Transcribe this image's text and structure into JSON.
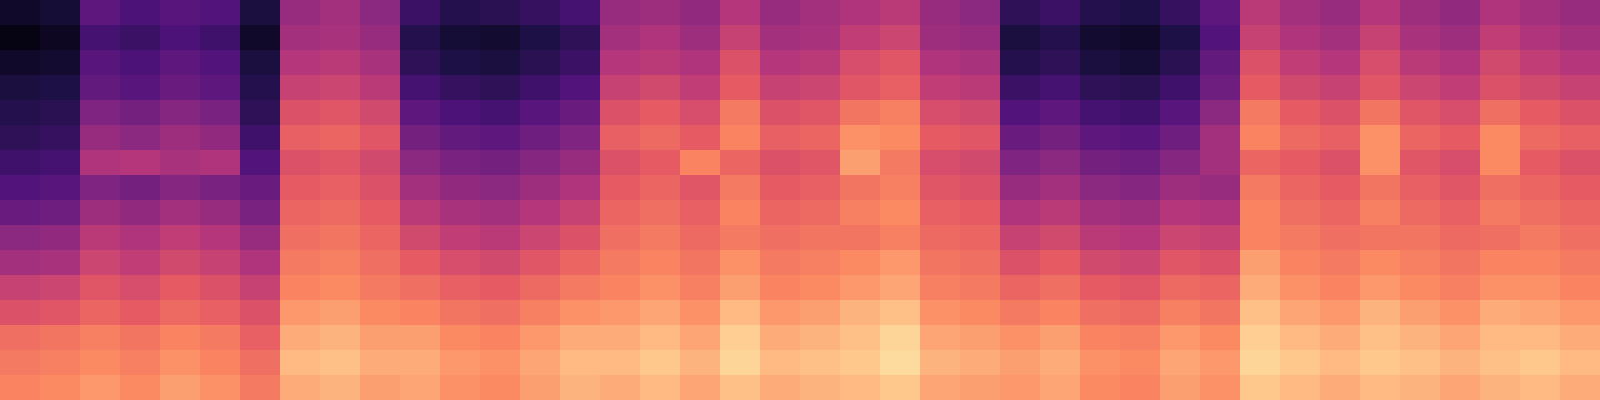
{
  "chart_data": {
    "type": "heatmap",
    "color": "magma",
    "tick_labels": false,
    "color_range": [
      -80,
      -10
    ],
    "cells": [
      [
        -75,
        -73,
        -60,
        -63,
        -61,
        -62,
        -72,
        -50,
        -48,
        -52,
        -66,
        -70,
        -69,
        -67,
        -64,
        -50,
        -49,
        -51,
        -45,
        -50,
        -48,
        -46,
        -44,
        -50,
        -52,
        -68,
        -66,
        -70,
        -71,
        -67,
        -60,
        -44,
        -48,
        -50,
        -45,
        -49,
        -51,
        -46,
        -48,
        -50
      ],
      [
        -78,
        -76,
        -64,
        -66,
        -63,
        -65,
        -75,
        -48,
        -47,
        -50,
        -70,
        -73,
        -74,
        -71,
        -68,
        -48,
        -46,
        -49,
        -42,
        -48,
        -47,
        -43,
        -41,
        -49,
        -50,
        -72,
        -70,
        -74,
        -75,
        -71,
        -62,
        -42,
        -46,
        -48,
        -42,
        -47,
        -49,
        -43,
        -46,
        -48
      ],
      [
        -75,
        -74,
        -61,
        -63,
        -60,
        -62,
        -72,
        -45,
        -44,
        -47,
        -68,
        -71,
        -72,
        -69,
        -66,
        -45,
        -44,
        -46,
        -38,
        -45,
        -44,
        -39,
        -37,
        -46,
        -47,
        -70,
        -68,
        -72,
        -73,
        -69,
        -59,
        -38,
        -43,
        -45,
        -39,
        -44,
        -46,
        -40,
        -43,
        -45
      ],
      [
        -72,
        -71,
        -59,
        -61,
        -58,
        -60,
        -70,
        -42,
        -41,
        -44,
        -64,
        -67,
        -68,
        -65,
        -62,
        -42,
        -40,
        -43,
        -36,
        -42,
        -41,
        -37,
        -35,
        -43,
        -44,
        -66,
        -64,
        -68,
        -69,
        -65,
        -57,
        -36,
        -40,
        -42,
        -37,
        -41,
        -43,
        -38,
        -40,
        -42
      ],
      [
        -70,
        -69,
        -54,
        -56,
        -53,
        -55,
        -68,
        -38,
        -37,
        -40,
        -60,
        -63,
        -64,
        -61,
        -58,
        -38,
        -36,
        -39,
        -30,
        -38,
        -37,
        -31,
        -29,
        -39,
        -40,
        -62,
        -60,
        -64,
        -65,
        -61,
        -52,
        -30,
        -36,
        -38,
        -31,
        -37,
        -39,
        -32,
        -36,
        -38
      ],
      [
        -68,
        -67,
        -50,
        -52,
        -49,
        -51,
        -65,
        -35,
        -34,
        -37,
        -56,
        -59,
        -60,
        -57,
        -54,
        -35,
        -33,
        -36,
        -28,
        -35,
        -34,
        -26,
        -27,
        -36,
        -37,
        -58,
        -56,
        -60,
        -61,
        -57,
        -48,
        -28,
        -33,
        -35,
        -26,
        -34,
        -36,
        -27,
        -33,
        -35
      ],
      [
        -65,
        -64,
        -46,
        -45,
        -47,
        -46,
        -62,
        -38,
        -37,
        -40,
        -52,
        -55,
        -56,
        -53,
        -50,
        -38,
        -36,
        -28,
        -34,
        -38,
        -37,
        -24,
        -30,
        -39,
        -40,
        -54,
        -52,
        -56,
        -57,
        -53,
        -48,
        -34,
        -36,
        -38,
        -26,
        -37,
        -39,
        -27,
        -36,
        -38
      ],
      [
        -62,
        -61,
        -54,
        -56,
        -53,
        -55,
        -58,
        -36,
        -35,
        -38,
        -48,
        -51,
        -52,
        -49,
        -46,
        -36,
        -34,
        -37,
        -30,
        -36,
        -35,
        -31,
        -29,
        -37,
        -38,
        -50,
        -48,
        -52,
        -53,
        -49,
        -50,
        -30,
        -34,
        -36,
        -31,
        -35,
        -37,
        -32,
        -34,
        -36
      ],
      [
        -58,
        -57,
        -49,
        -51,
        -48,
        -50,
        -55,
        -34,
        -33,
        -36,
        -44,
        -47,
        -48,
        -45,
        -42,
        -34,
        -32,
        -35,
        -28,
        -34,
        -33,
        -29,
        -27,
        -35,
        -36,
        -46,
        -44,
        -48,
        -49,
        -45,
        -46,
        -28,
        -32,
        -34,
        -29,
        -33,
        -35,
        -30,
        -32,
        -34
      ],
      [
        -52,
        -51,
        -44,
        -46,
        -43,
        -45,
        -50,
        -32,
        -31,
        -34,
        -40,
        -43,
        -44,
        -41,
        -38,
        -32,
        -30,
        -33,
        -30,
        -32,
        -31,
        -31,
        -29,
        -33,
        -34,
        -42,
        -40,
        -44,
        -45,
        -41,
        -42,
        -28,
        -30,
        -32,
        -31,
        -31,
        -33,
        -32,
        -30,
        -32
      ],
      [
        -48,
        -47,
        -41,
        -43,
        -40,
        -42,
        -46,
        -30,
        -29,
        -32,
        -36,
        -39,
        -40,
        -37,
        -34,
        -30,
        -28,
        -31,
        -26,
        -30,
        -29,
        -27,
        -25,
        -31,
        -32,
        -38,
        -36,
        -40,
        -41,
        -37,
        -38,
        -24,
        -28,
        -30,
        -27,
        -29,
        -31,
        -28,
        -28,
        -30
      ],
      [
        -42,
        -41,
        -37,
        -39,
        -36,
        -38,
        -42,
        -28,
        -27,
        -30,
        -32,
        -35,
        -36,
        -33,
        -30,
        -28,
        -26,
        -29,
        -24,
        -28,
        -27,
        -25,
        -23,
        -29,
        -30,
        -34,
        -32,
        -36,
        -37,
        -33,
        -34,
        -22,
        -26,
        -28,
        -25,
        -27,
        -29,
        -26,
        -26,
        -28
      ],
      [
        -38,
        -37,
        -34,
        -36,
        -33,
        -35,
        -38,
        -25,
        -24,
        -27,
        -28,
        -31,
        -32,
        -29,
        -26,
        -25,
        -23,
        -26,
        -20,
        -25,
        -24,
        -21,
        -19,
        -26,
        -27,
        -30,
        -28,
        -32,
        -33,
        -29,
        -31,
        -19,
        -23,
        -25,
        -21,
        -24,
        -26,
        -22,
        -23,
        -25
      ],
      [
        -32,
        -31,
        -29,
        -31,
        -28,
        -30,
        -35,
        -22,
        -21,
        -24,
        -24,
        -27,
        -28,
        -25,
        -22,
        -22,
        -20,
        -23,
        -17,
        -22,
        -21,
        -19,
        -16,
        -23,
        -24,
        -26,
        -24,
        -28,
        -29,
        -25,
        -27,
        -17,
        -20,
        -22,
        -19,
        -21,
        -23,
        -20,
        -20,
        -22
      ],
      [
        -30,
        -29,
        -27,
        -29,
        -26,
        -28,
        -32,
        -20,
        -19,
        -22,
        -22,
        -25,
        -26,
        -23,
        -20,
        -20,
        -18,
        -21,
        -16,
        -20,
        -19,
        -18,
        -15,
        -21,
        -22,
        -24,
        -22,
        -26,
        -27,
        -23,
        -25,
        -16,
        -18,
        -20,
        -18,
        -19,
        -21,
        -19,
        -18,
        -20
      ],
      [
        -28,
        -27,
        -25,
        -27,
        -24,
        -26,
        -30,
        -22,
        -21,
        -24,
        -23,
        -26,
        -27,
        -24,
        -21,
        -22,
        -20,
        -23,
        -19,
        -22,
        -21,
        -20,
        -18,
        -23,
        -24,
        -25,
        -23,
        -27,
        -28,
        -24,
        -26,
        -18,
        -20,
        -22,
        -20,
        -21,
        -23,
        -21,
        -20,
        -22
      ]
    ]
  }
}
